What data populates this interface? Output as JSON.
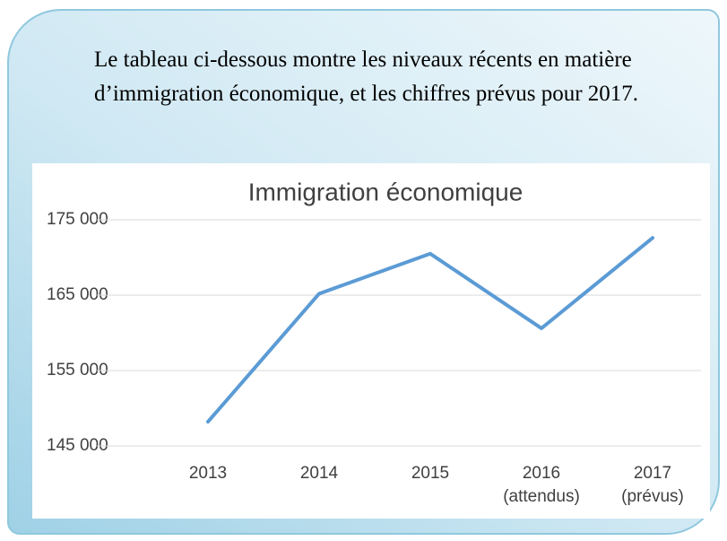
{
  "intro": "Le tableau ci-dessous montre les niveaux récents en matière d’immigration économique, et les chiffres prévus pour 2017.",
  "chart_data": {
    "type": "line",
    "title": "Immigration économique",
    "categories": [
      "2013",
      "2014",
      "2015",
      "2016 (attendus)",
      "2017 (prévus)"
    ],
    "series": [
      {
        "name": "Immigration économique",
        "color": "#5b9bd5",
        "values": [
          148200,
          165200,
          170500,
          160600,
          172600
        ]
      }
    ],
    "ylim": [
      145000,
      175000
    ],
    "yticks": [
      {
        "value": 145000,
        "label": "145 000"
      },
      {
        "value": 155000,
        "label": "155 000"
      },
      {
        "value": 165000,
        "label": "165 000"
      },
      {
        "value": 175000,
        "label": "175 000"
      }
    ],
    "grid": true
  }
}
